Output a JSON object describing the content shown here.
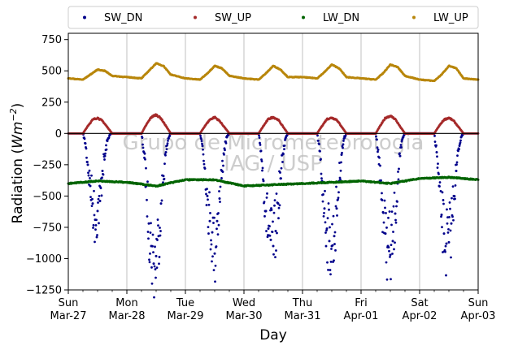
{
  "chart_data": {
    "type": "scatter",
    "title": "",
    "xlabel": "Day",
    "ylabel": "Radiation (Wm−2)",
    "ylabel_parts": {
      "prefix": "Radiation (",
      "unit_base": "Wm",
      "unit_exp": "−2",
      "suffix": ")"
    },
    "ylim": [
      -1250,
      800
    ],
    "yticks": [
      -1250,
      -1000,
      -750,
      -500,
      -250,
      0,
      250,
      500,
      750
    ],
    "ytick_labels": [
      "−1250",
      "−1000",
      "−750",
      "−500",
      "−250",
      "0",
      "250",
      "500",
      "750"
    ],
    "xlim": [
      "2022-03-27",
      "2022-04-03"
    ],
    "xticks": [
      {
        "date": "2022-03-27",
        "day": "Sun",
        "date_label": "Mar-27"
      },
      {
        "date": "2022-03-28",
        "day": "Mon",
        "date_label": "Mar-28"
      },
      {
        "date": "2022-03-29",
        "day": "Tue",
        "date_label": "Mar-29"
      },
      {
        "date": "2022-03-30",
        "day": "Wed",
        "date_label": "Mar-30"
      },
      {
        "date": "2022-03-31",
        "day": "Thu",
        "date_label": "Mar-31"
      },
      {
        "date": "2022-04-01",
        "day": "Fri",
        "date_label": "Apr-01"
      },
      {
        "date": "2022-04-02",
        "day": "Sat",
        "date_label": "Apr-02"
      },
      {
        "date": "2022-04-03",
        "day": "Sun",
        "date_label": "Apr-03"
      }
    ],
    "grid": "vertical",
    "zero_line": true,
    "legend": {
      "placement": "top",
      "ncol": 4
    },
    "watermark": [
      "Grupo de Micrometeorologia",
      "IAG / USP"
    ],
    "series": [
      {
        "name": "SW_DN",
        "color": "#00008b",
        "x": [
          "2022-03-27 06:00",
          "2022-03-27 07:00",
          "2022-03-27 08:00",
          "2022-03-27 09:00",
          "2022-03-27 10:00",
          "2022-03-27 11:00",
          "2022-03-27 12:00",
          "2022-03-27 13:00",
          "2022-03-27 14:00",
          "2022-03-27 15:00",
          "2022-03-27 16:00",
          "2022-03-27 17:00",
          "2022-03-27 18:00",
          "2022-03-28 06:00",
          "2022-03-28 07:00",
          "2022-03-28 08:00",
          "2022-03-28 09:00",
          "2022-03-28 10:00",
          "2022-03-28 11:00",
          "2022-03-28 12:00",
          "2022-03-28 13:00",
          "2022-03-28 14:00",
          "2022-03-28 15:00",
          "2022-03-28 16:00",
          "2022-03-28 17:00",
          "2022-03-28 18:00",
          "2022-03-29 06:00",
          "2022-03-29 07:00",
          "2022-03-29 08:00",
          "2022-03-29 09:00",
          "2022-03-29 10:00",
          "2022-03-29 11:00",
          "2022-03-29 12:00",
          "2022-03-29 13:00",
          "2022-03-29 14:00",
          "2022-03-29 15:00",
          "2022-03-29 16:00",
          "2022-03-29 17:00",
          "2022-03-29 18:00",
          "2022-03-30 06:00",
          "2022-03-30 07:00",
          "2022-03-30 08:00",
          "2022-03-30 09:00",
          "2022-03-30 10:00",
          "2022-03-30 11:00",
          "2022-03-30 12:00",
          "2022-03-30 13:00",
          "2022-03-30 14:00",
          "2022-03-30 15:00",
          "2022-03-30 16:00",
          "2022-03-30 17:00",
          "2022-03-30 18:00",
          "2022-03-31 06:00",
          "2022-03-31 07:00",
          "2022-03-31 08:00",
          "2022-03-31 09:00",
          "2022-03-31 10:00",
          "2022-03-31 11:00",
          "2022-03-31 12:00",
          "2022-03-31 13:00",
          "2022-03-31 14:00",
          "2022-03-31 15:00",
          "2022-03-31 16:00",
          "2022-03-31 17:00",
          "2022-03-31 18:00",
          "2022-04-01 06:00",
          "2022-04-01 07:00",
          "2022-04-01 08:00",
          "2022-04-01 09:00",
          "2022-04-01 10:00",
          "2022-04-01 11:00",
          "2022-04-01 12:00",
          "2022-04-01 13:00",
          "2022-04-01 14:00",
          "2022-04-01 15:00",
          "2022-04-01 16:00",
          "2022-04-01 17:00",
          "2022-04-01 18:00",
          "2022-04-02 06:00",
          "2022-04-02 07:00",
          "2022-04-02 08:00",
          "2022-04-02 09:00",
          "2022-04-02 10:00",
          "2022-04-02 11:00",
          "2022-04-02 12:00",
          "2022-04-02 13:00",
          "2022-04-02 14:00",
          "2022-04-02 15:00",
          "2022-04-02 16:00",
          "2022-04-02 17:00",
          "2022-04-02 18:00"
        ],
        "y": [
          0,
          -80,
          -250,
          -420,
          -560,
          -690,
          -620,
          -540,
          -300,
          -180,
          -60,
          -10,
          0,
          0,
          -150,
          -420,
          -720,
          -900,
          -1040,
          -980,
          -820,
          -560,
          -340,
          -150,
          -40,
          0,
          0,
          -100,
          -280,
          -500,
          -700,
          -790,
          -960,
          -700,
          -520,
          -300,
          -120,
          -30,
          0,
          0,
          -140,
          -380,
          -620,
          -760,
          -850,
          -900,
          -780,
          -560,
          -360,
          -160,
          -40,
          0,
          0,
          -140,
          -380,
          -600,
          -760,
          -860,
          -900,
          -820,
          -600,
          -380,
          -170,
          -40,
          0,
          0,
          -130,
          -380,
          -630,
          -800,
          -900,
          -970,
          -860,
          -640,
          -400,
          -180,
          -40,
          0,
          0,
          -150,
          -420,
          -650,
          -800,
          -880,
          -870,
          -720,
          -500,
          -300,
          -120,
          -30,
          0
        ]
      },
      {
        "name": "SW_UP",
        "color": "#a52a2a",
        "x": [
          "2022-03-27 06:00",
          "2022-03-27 08:00",
          "2022-03-27 10:00",
          "2022-03-27 12:00",
          "2022-03-27 14:00",
          "2022-03-27 16:00",
          "2022-03-27 18:00",
          "2022-03-28 06:00",
          "2022-03-28 08:00",
          "2022-03-28 10:00",
          "2022-03-28 12:00",
          "2022-03-28 14:00",
          "2022-03-28 16:00",
          "2022-03-28 18:00",
          "2022-03-29 06:00",
          "2022-03-29 08:00",
          "2022-03-29 10:00",
          "2022-03-29 12:00",
          "2022-03-29 14:00",
          "2022-03-29 16:00",
          "2022-03-29 18:00",
          "2022-03-30 06:00",
          "2022-03-30 08:00",
          "2022-03-30 10:00",
          "2022-03-30 12:00",
          "2022-03-30 14:00",
          "2022-03-30 16:00",
          "2022-03-30 18:00",
          "2022-03-31 06:00",
          "2022-03-31 08:00",
          "2022-03-31 10:00",
          "2022-03-31 12:00",
          "2022-03-31 14:00",
          "2022-03-31 16:00",
          "2022-03-31 18:00",
          "2022-04-01 06:00",
          "2022-04-01 08:00",
          "2022-04-01 10:00",
          "2022-04-01 12:00",
          "2022-04-01 14:00",
          "2022-04-01 16:00",
          "2022-04-01 18:00",
          "2022-04-02 06:00",
          "2022-04-02 08:00",
          "2022-04-02 10:00",
          "2022-04-02 12:00",
          "2022-04-02 14:00",
          "2022-04-02 16:00",
          "2022-04-02 18:00"
        ],
        "y": [
          0,
          60,
          110,
          125,
          100,
          50,
          0,
          0,
          70,
          130,
          150,
          120,
          60,
          0,
          0,
          60,
          110,
          130,
          100,
          50,
          0,
          0,
          60,
          115,
          130,
          110,
          55,
          0,
          0,
          60,
          115,
          125,
          110,
          55,
          0,
          0,
          65,
          125,
          140,
          115,
          55,
          0,
          0,
          60,
          110,
          125,
          100,
          50,
          0
        ]
      },
      {
        "name": "LW_DN",
        "color": "#006400",
        "x": [
          "2022-03-27 00:00",
          "2022-03-27 12:00",
          "2022-03-28 00:00",
          "2022-03-28 12:00",
          "2022-03-29 00:00",
          "2022-03-29 12:00",
          "2022-03-30 00:00",
          "2022-03-30 12:00",
          "2022-03-31 00:00",
          "2022-03-31 12:00",
          "2022-04-01 00:00",
          "2022-04-01 12:00",
          "2022-04-02 00:00",
          "2022-04-02 12:00",
          "2022-04-03 00:00"
        ],
        "y": [
          -400,
          -380,
          -390,
          -420,
          -370,
          -370,
          -420,
          -410,
          -400,
          -390,
          -380,
          -400,
          -360,
          -350,
          -370
        ]
      },
      {
        "name": "LW_UP",
        "color": "#b8860b",
        "x": [
          "2022-03-27 00:00",
          "2022-03-27 06:00",
          "2022-03-27 09:00",
          "2022-03-27 12:00",
          "2022-03-27 15:00",
          "2022-03-27 18:00",
          "2022-03-28 00:00",
          "2022-03-28 06:00",
          "2022-03-28 09:00",
          "2022-03-28 12:00",
          "2022-03-28 15:00",
          "2022-03-28 18:00",
          "2022-03-29 00:00",
          "2022-03-29 06:00",
          "2022-03-29 09:00",
          "2022-03-29 12:00",
          "2022-03-29 15:00",
          "2022-03-29 18:00",
          "2022-03-30 00:00",
          "2022-03-30 06:00",
          "2022-03-30 09:00",
          "2022-03-30 12:00",
          "2022-03-30 15:00",
          "2022-03-30 18:00",
          "2022-03-31 00:00",
          "2022-03-31 06:00",
          "2022-03-31 09:00",
          "2022-03-31 12:00",
          "2022-03-31 15:00",
          "2022-03-31 18:00",
          "2022-04-01 00:00",
          "2022-04-01 06:00",
          "2022-04-01 09:00",
          "2022-04-01 12:00",
          "2022-04-01 15:00",
          "2022-04-01 18:00",
          "2022-04-02 00:00",
          "2022-04-02 06:00",
          "2022-04-02 09:00",
          "2022-04-02 12:00",
          "2022-04-02 15:00",
          "2022-04-02 18:00",
          "2022-04-03 00:00"
        ],
        "y": [
          440,
          430,
          470,
          510,
          500,
          460,
          450,
          440,
          500,
          560,
          540,
          470,
          440,
          430,
          480,
          540,
          520,
          460,
          440,
          430,
          480,
          540,
          510,
          450,
          450,
          440,
          490,
          550,
          520,
          450,
          440,
          430,
          480,
          550,
          530,
          460,
          430,
          420,
          470,
          540,
          520,
          440,
          430
        ]
      }
    ]
  }
}
